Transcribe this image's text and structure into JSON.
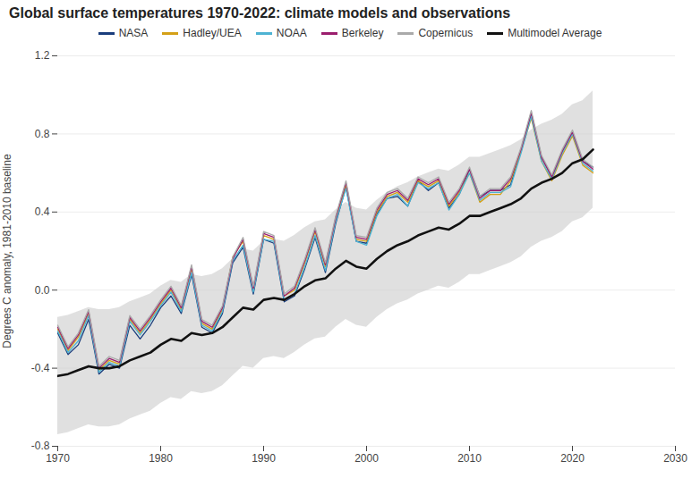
{
  "chart_data": {
    "type": "line",
    "title": "Global surface temperatures 1970-2022: climate models and observations",
    "y_label": "Degrees C anomaly, 1981-2010 baseline",
    "xlim": [
      1970,
      2030
    ],
    "ylim": [
      -0.8,
      1.2
    ],
    "xticks": [
      1970,
      1980,
      1990,
      2000,
      2010,
      2020,
      2030
    ],
    "yticks": [
      -0.8,
      -0.4,
      {
        "value": 0.0,
        "label": "0.0"
      },
      0.4,
      0.8,
      1.2
    ],
    "grid": "y",
    "legend": "top",
    "x": [
      1970,
      1971,
      1972,
      1973,
      1974,
      1975,
      1976,
      1977,
      1978,
      1979,
      1980,
      1981,
      1982,
      1983,
      1984,
      1985,
      1986,
      1987,
      1988,
      1989,
      1990,
      1991,
      1992,
      1993,
      1994,
      1995,
      1996,
      1997,
      1998,
      1999,
      2000,
      2001,
      2002,
      2003,
      2004,
      2005,
      2006,
      2007,
      2008,
      2009,
      2010,
      2011,
      2012,
      2013,
      2014,
      2015,
      2016,
      2017,
      2018,
      2019,
      2020,
      2021,
      2022
    ],
    "band": {
      "color": "#cccccc",
      "lower": [
        -0.74,
        -0.73,
        -0.71,
        -0.69,
        -0.7,
        -0.7,
        -0.69,
        -0.66,
        -0.64,
        -0.62,
        -0.58,
        -0.55,
        -0.56,
        -0.52,
        -0.53,
        -0.52,
        -0.49,
        -0.44,
        -0.39,
        -0.4,
        -0.35,
        -0.34,
        -0.35,
        -0.32,
        -0.28,
        -0.25,
        -0.24,
        -0.19,
        -0.15,
        -0.18,
        -0.19,
        -0.14,
        -0.1,
        -0.07,
        -0.05,
        -0.02,
        0.0,
        0.02,
        0.01,
        0.04,
        0.08,
        0.08,
        0.1,
        0.12,
        0.14,
        0.17,
        0.22,
        0.25,
        0.27,
        0.3,
        0.35,
        0.37,
        0.42
      ],
      "upper": [
        -0.14,
        -0.13,
        -0.11,
        -0.09,
        -0.1,
        -0.1,
        -0.09,
        -0.06,
        -0.04,
        -0.02,
        0.02,
        0.05,
        0.04,
        0.08,
        0.07,
        0.08,
        0.11,
        0.16,
        0.21,
        0.2,
        0.25,
        0.26,
        0.25,
        0.28,
        0.32,
        0.35,
        0.36,
        0.41,
        0.45,
        0.42,
        0.41,
        0.46,
        0.5,
        0.53,
        0.55,
        0.58,
        0.6,
        0.62,
        0.61,
        0.64,
        0.68,
        0.68,
        0.7,
        0.72,
        0.74,
        0.77,
        0.82,
        0.85,
        0.87,
        0.9,
        0.95,
        0.97,
        1.02
      ]
    },
    "series": [
      {
        "name": "NASA",
        "color": "#1a3d7c",
        "values": [
          -0.22,
          -0.33,
          -0.28,
          -0.15,
          -0.43,
          -0.38,
          -0.4,
          -0.18,
          -0.25,
          -0.18,
          -0.09,
          -0.03,
          -0.12,
          0.08,
          -0.19,
          -0.22,
          -0.12,
          0.14,
          0.22,
          -0.02,
          0.26,
          0.24,
          -0.06,
          -0.03,
          0.11,
          0.27,
          0.09,
          0.34,
          0.53,
          0.25,
          0.24,
          0.39,
          0.47,
          0.48,
          0.43,
          0.56,
          0.51,
          0.55,
          0.42,
          0.49,
          0.62,
          0.48,
          0.51,
          0.51,
          0.54,
          0.72,
          0.9,
          0.68,
          0.58,
          0.71,
          0.81,
          0.66,
          0.63
        ]
      },
      {
        "name": "Hadley/UEA",
        "color": "#d4a017",
        "values": [
          -0.2,
          -0.31,
          -0.24,
          -0.12,
          -0.41,
          -0.36,
          -0.38,
          -0.15,
          -0.22,
          -0.15,
          -0.07,
          0.0,
          -0.1,
          0.11,
          -0.17,
          -0.2,
          -0.1,
          0.17,
          0.25,
          0.0,
          0.28,
          0.26,
          -0.03,
          0.0,
          0.14,
          0.3,
          0.12,
          0.36,
          0.54,
          0.26,
          0.25,
          0.4,
          0.48,
          0.5,
          0.45,
          0.56,
          0.53,
          0.56,
          0.43,
          0.5,
          0.6,
          0.45,
          0.49,
          0.49,
          0.56,
          0.71,
          0.88,
          0.66,
          0.56,
          0.69,
          0.79,
          0.64,
          0.6
        ]
      },
      {
        "name": "NOAA",
        "color": "#4eb3d3",
        "values": [
          -0.21,
          -0.32,
          -0.26,
          -0.13,
          -0.42,
          -0.37,
          -0.39,
          -0.16,
          -0.23,
          -0.16,
          -0.08,
          -0.01,
          -0.11,
          0.09,
          -0.18,
          -0.21,
          -0.11,
          0.15,
          0.23,
          -0.01,
          0.26,
          0.25,
          -0.05,
          -0.02,
          0.12,
          0.28,
          0.1,
          0.35,
          0.52,
          0.25,
          0.23,
          0.38,
          0.47,
          0.49,
          0.43,
          0.55,
          0.52,
          0.55,
          0.41,
          0.49,
          0.6,
          0.46,
          0.5,
          0.5,
          0.53,
          0.7,
          0.89,
          0.66,
          0.57,
          0.7,
          0.8,
          0.65,
          0.61
        ]
      },
      {
        "name": "Berkeley",
        "color": "#9b1e6e",
        "values": [
          -0.19,
          -0.3,
          -0.23,
          -0.11,
          -0.4,
          -0.35,
          -0.37,
          -0.14,
          -0.21,
          -0.14,
          -0.06,
          0.01,
          -0.09,
          0.12,
          -0.16,
          -0.19,
          -0.09,
          0.16,
          0.26,
          0.01,
          0.29,
          0.27,
          -0.03,
          0.01,
          0.15,
          0.31,
          0.13,
          0.37,
          0.55,
          0.27,
          0.26,
          0.41,
          0.49,
          0.51,
          0.46,
          0.57,
          0.54,
          0.57,
          0.44,
          0.51,
          0.62,
          0.47,
          0.51,
          0.51,
          0.57,
          0.72,
          0.91,
          0.68,
          0.58,
          0.71,
          0.81,
          0.66,
          0.62
        ]
      },
      {
        "name": "Copernicus",
        "color": "#aaaaaa",
        "values": [
          -0.18,
          -0.29,
          -0.22,
          -0.1,
          -0.39,
          -0.34,
          -0.36,
          -0.13,
          -0.2,
          -0.13,
          -0.05,
          0.02,
          -0.08,
          0.13,
          -0.15,
          -0.18,
          -0.08,
          0.17,
          0.27,
          0.02,
          0.3,
          0.28,
          -0.02,
          0.02,
          0.16,
          0.32,
          0.14,
          0.38,
          0.56,
          0.28,
          0.27,
          0.42,
          0.5,
          0.52,
          0.47,
          0.58,
          0.55,
          0.58,
          0.45,
          0.52,
          0.63,
          0.48,
          0.52,
          0.52,
          0.58,
          0.73,
          0.92,
          0.69,
          0.59,
          0.72,
          0.82,
          0.67,
          0.63
        ]
      },
      {
        "name": "Multimodel Average",
        "color": "#111111",
        "values": [
          -0.44,
          -0.43,
          -0.41,
          -0.39,
          -0.4,
          -0.4,
          -0.39,
          -0.36,
          -0.34,
          -0.32,
          -0.28,
          -0.25,
          -0.26,
          -0.22,
          -0.23,
          -0.22,
          -0.19,
          -0.14,
          -0.09,
          -0.1,
          -0.05,
          -0.04,
          -0.05,
          -0.02,
          0.02,
          0.05,
          0.06,
          0.11,
          0.15,
          0.12,
          0.11,
          0.16,
          0.2,
          0.23,
          0.25,
          0.28,
          0.3,
          0.32,
          0.31,
          0.34,
          0.38,
          0.38,
          0.4,
          0.42,
          0.44,
          0.47,
          0.52,
          0.55,
          0.57,
          0.6,
          0.65,
          0.67,
          0.72
        ]
      }
    ]
  }
}
